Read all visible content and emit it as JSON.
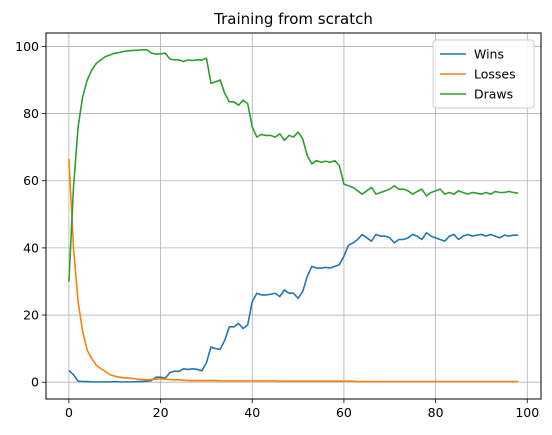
{
  "chart_data": {
    "type": "line",
    "title": "Training from scratch",
    "xlabel": "",
    "ylabel": "",
    "xlim": [
      -5,
      103
    ],
    "ylim": [
      -5,
      104
    ],
    "x_ticks": [
      0,
      20,
      40,
      60,
      80,
      100
    ],
    "y_ticks": [
      0,
      20,
      40,
      60,
      80,
      100
    ],
    "grid": true,
    "legend_position": "top-right",
    "series": [
      {
        "name": "Wins",
        "color": "#1f77b4",
        "x": [
          0,
          1,
          2,
          3,
          4,
          5,
          6,
          7,
          8,
          9,
          10,
          11,
          12,
          13,
          14,
          15,
          16,
          17,
          18,
          19,
          20,
          21,
          22,
          23,
          24,
          25,
          26,
          27,
          28,
          29,
          30,
          31,
          32,
          33,
          34,
          35,
          36,
          37,
          38,
          39,
          40,
          41,
          42,
          43,
          44,
          45,
          46,
          47,
          48,
          49,
          50,
          51,
          52,
          53,
          54,
          55,
          56,
          57,
          58,
          59,
          60,
          61,
          62,
          63,
          64,
          65,
          66,
          67,
          68,
          69,
          70,
          71,
          72,
          73,
          74,
          75,
          76,
          77,
          78,
          79,
          80,
          81,
          82,
          83,
          84,
          85,
          86,
          87,
          88,
          89,
          90,
          91,
          92,
          93,
          94,
          95,
          96,
          97,
          98
        ],
        "values": [
          3.5,
          2.2,
          0.3,
          0.2,
          0.2,
          0.1,
          0.1,
          0.1,
          0.1,
          0.1,
          0.2,
          0.1,
          0.1,
          0.1,
          0.1,
          0.2,
          0.2,
          0.3,
          0.5,
          1.5,
          1.5,
          1.2,
          2.8,
          3.3,
          3.2,
          4.0,
          3.8,
          4.0,
          3.8,
          3.4,
          5.8,
          10.5,
          10.0,
          9.8,
          12.5,
          16.5,
          16.5,
          17.5,
          16.0,
          17.0,
          24.0,
          26.5,
          26.0,
          26.0,
          26.2,
          26.5,
          25.5,
          27.5,
          26.5,
          26.5,
          25.0,
          27.0,
          31.5,
          34.5,
          34.0,
          34.0,
          34.2,
          34.0,
          34.5,
          35.0,
          37.5,
          40.8,
          41.5,
          42.5,
          44.0,
          43.0,
          42.0,
          44.0,
          43.5,
          43.5,
          43.0,
          41.5,
          42.5,
          42.5,
          43.0,
          44.0,
          43.5,
          42.5,
          44.5,
          43.5,
          43.0,
          42.5,
          42.0,
          43.5,
          44.0,
          42.5,
          43.5,
          44.0,
          43.5,
          43.8,
          44.0,
          43.5,
          44.0,
          43.5,
          43.0,
          43.8,
          43.5,
          43.8,
          43.8
        ]
      },
      {
        "name": "Losses",
        "color": "#ff7f0e",
        "x": [
          0,
          1,
          2,
          3,
          4,
          5,
          6,
          7,
          8,
          9,
          10,
          11,
          12,
          13,
          14,
          15,
          16,
          17,
          18,
          19,
          20,
          21,
          22,
          23,
          24,
          25,
          26,
          27,
          28,
          29,
          30,
          31,
          32,
          33,
          34,
          35,
          36,
          37,
          38,
          39,
          40,
          41,
          42,
          43,
          44,
          45,
          46,
          47,
          48,
          49,
          50,
          51,
          52,
          53,
          54,
          55,
          56,
          57,
          58,
          59,
          60,
          61,
          62,
          63,
          64,
          65,
          66,
          67,
          68,
          69,
          70,
          71,
          72,
          73,
          74,
          75,
          76,
          77,
          78,
          79,
          80,
          81,
          82,
          83,
          84,
          85,
          86,
          87,
          88,
          89,
          90,
          91,
          92,
          93,
          94,
          95,
          96,
          97,
          98
        ],
        "values": [
          66.5,
          40.0,
          24.0,
          15.0,
          9.5,
          7.0,
          5.0,
          4.0,
          3.2,
          2.2,
          1.8,
          1.5,
          1.3,
          1.2,
          1.1,
          0.9,
          0.8,
          0.7,
          0.8,
          0.9,
          1.0,
          0.9,
          0.8,
          0.7,
          0.7,
          0.6,
          0.5,
          0.5,
          0.5,
          0.5,
          0.5,
          0.5,
          0.5,
          0.4,
          0.4,
          0.4,
          0.4,
          0.4,
          0.4,
          0.4,
          0.4,
          0.4,
          0.4,
          0.4,
          0.4,
          0.4,
          0.3,
          0.3,
          0.3,
          0.3,
          0.3,
          0.3,
          0.3,
          0.3,
          0.3,
          0.3,
          0.3,
          0.3,
          0.3,
          0.3,
          0.3,
          0.3,
          0.3,
          0.2,
          0.2,
          0.2,
          0.2,
          0.2,
          0.2,
          0.2,
          0.2,
          0.2,
          0.2,
          0.2,
          0.2,
          0.2,
          0.2,
          0.2,
          0.2,
          0.2,
          0.2,
          0.2,
          0.2,
          0.2,
          0.2,
          0.2,
          0.2,
          0.2,
          0.2,
          0.2,
          0.2,
          0.2,
          0.2,
          0.2,
          0.2,
          0.2,
          0.2,
          0.2,
          0.2
        ]
      },
      {
        "name": "Draws",
        "color": "#2ca02c",
        "x": [
          0,
          1,
          2,
          3,
          4,
          5,
          6,
          7,
          8,
          9,
          10,
          11,
          12,
          13,
          14,
          15,
          16,
          17,
          18,
          19,
          20,
          21,
          22,
          23,
          24,
          25,
          26,
          27,
          28,
          29,
          30,
          31,
          32,
          33,
          34,
          35,
          36,
          37,
          38,
          39,
          40,
          41,
          42,
          43,
          44,
          45,
          46,
          47,
          48,
          49,
          50,
          51,
          52,
          53,
          54,
          55,
          56,
          57,
          58,
          59,
          60,
          61,
          62,
          63,
          64,
          65,
          66,
          67,
          68,
          69,
          70,
          71,
          72,
          73,
          74,
          75,
          76,
          77,
          78,
          79,
          80,
          81,
          82,
          83,
          84,
          85,
          86,
          87,
          88,
          89,
          90,
          91,
          92,
          93,
          94,
          95,
          96,
          97,
          98
        ],
        "values": [
          30.0,
          58.0,
          76.0,
          85.0,
          90.0,
          93.0,
          95.0,
          96.0,
          97.0,
          97.5,
          98.0,
          98.2,
          98.5,
          98.7,
          98.8,
          98.9,
          99.0,
          99.0,
          98.0,
          97.7,
          97.8,
          98.0,
          96.3,
          96.0,
          96.0,
          95.5,
          96.0,
          95.8,
          96.0,
          95.9,
          96.5,
          89.0,
          89.5,
          90.0,
          86.0,
          83.5,
          83.5,
          82.5,
          84.0,
          83.0,
          76.0,
          73.0,
          73.8,
          73.5,
          73.5,
          73.0,
          74.0,
          72.0,
          73.5,
          73.0,
          74.5,
          72.5,
          67.5,
          65.0,
          66.0,
          65.5,
          65.8,
          65.5,
          66.0,
          64.5,
          59.0,
          58.5,
          58.0,
          57.0,
          56.0,
          57.0,
          58.0,
          56.0,
          56.5,
          57.0,
          57.5,
          58.5,
          57.5,
          57.5,
          57.0,
          56.0,
          56.8,
          57.5,
          55.5,
          56.5,
          57.0,
          57.5,
          56.0,
          56.5,
          56.0,
          57.0,
          56.5,
          56.0,
          56.5,
          56.3,
          56.0,
          56.5,
          56.0,
          56.8,
          56.5,
          56.5,
          56.8,
          56.5,
          56.3
        ]
      }
    ]
  }
}
